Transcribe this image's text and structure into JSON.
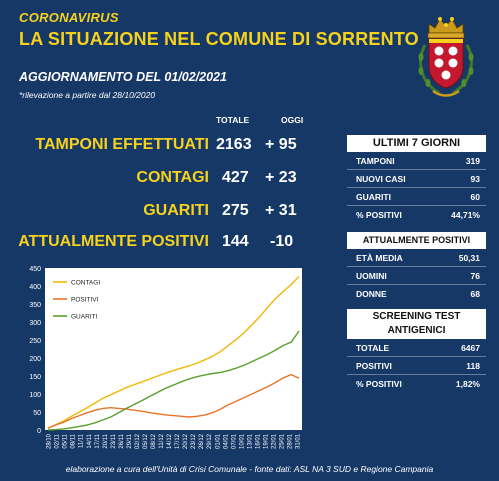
{
  "header": {
    "kicker": "CORONAVIRUS",
    "title": "LA SITUAZIONE NEL COMUNE DI SORRENTO",
    "update": "AGGIORNAMENTO DEL 01/02/2021",
    "note": "*rilevazione a partire dal 28/10/2020"
  },
  "columns": {
    "total": "TOTALE",
    "today": "OGGI"
  },
  "stats": [
    {
      "label": "TAMPONI EFFETTUATI",
      "total": "2163",
      "today": "+ 95"
    },
    {
      "label": "CONTAGI",
      "total": "427",
      "today": "+ 23"
    },
    {
      "label": "GUARITI",
      "total": "275",
      "today": "+ 31"
    },
    {
      "label": "ATTUALMENTE POSITIVI",
      "total": "144",
      "today": "-10"
    }
  ],
  "last7": {
    "title": "ULTIMI 7 GIORNI",
    "rows": [
      {
        "label": "TAMPONI",
        "value": "319"
      },
      {
        "label": "NUOVI CASI",
        "value": "93"
      },
      {
        "label": "GUARITI",
        "value": "60"
      },
      {
        "label": "% POSITIVI",
        "value": "44,71%"
      }
    ]
  },
  "positives": {
    "title": "ATTUALMENTE POSITIVI",
    "rows": [
      {
        "label": "ETÀ MEDIA",
        "value": "50,31"
      },
      {
        "label": "UOMINI",
        "value": "76"
      },
      {
        "label": "DONNE",
        "value": "68"
      }
    ]
  },
  "screening": {
    "title_line1": "SCREENING TEST",
    "title_line2": "ANTIGENICI",
    "rows": [
      {
        "label": "TOTALE",
        "value": "6467"
      },
      {
        "label": "POSITIVI",
        "value": "118"
      },
      {
        "label": "% POSITIVI",
        "value": "1,82%"
      }
    ]
  },
  "footer": "elaborazione a cura dell'Unità di Crisi Comunale - fonte dati: ASL NA 3 SUD e Regione Campania",
  "colors": {
    "background": "#163866",
    "accent": "#f6d21c",
    "contagi": "#f2b705",
    "positivi": "#e8742a",
    "guariti": "#5aa02c"
  },
  "chart_data": {
    "type": "line",
    "ylim": [
      0,
      450
    ],
    "yticks": [
      "0",
      "50",
      "100",
      "150",
      "200",
      "250",
      "300",
      "350",
      "400",
      "450"
    ],
    "x": [
      "28/10",
      "31/10",
      "03/11",
      "06/11",
      "09/11",
      "12/11",
      "15/11",
      "18/11",
      "21/11",
      "24/11",
      "27/11",
      "30/11",
      "03/12",
      "06/12",
      "09/12",
      "12/12",
      "15/12",
      "18/12",
      "21/12",
      "24/12",
      "27/12",
      "30/12",
      "02/01",
      "05/01",
      "08/01",
      "11/01",
      "14/01",
      "17/01",
      "20/01",
      "23/01",
      "26/01",
      "29/01",
      "01/02"
    ],
    "xticks": [
      "28/10",
      "02/11",
      "05/11",
      "08/11",
      "11/11",
      "14/11",
      "17/11",
      "20/11",
      "23/11",
      "26/11",
      "29/11",
      "02/12",
      "05/12",
      "08/12",
      "11/12",
      "14/12",
      "17/12",
      "20/12",
      "23/12",
      "26/12",
      "29/12",
      "01/01",
      "04/01",
      "07/01",
      "10/01",
      "13/01",
      "16/01",
      "19/01",
      "22/01",
      "25/01",
      "28/01",
      "31/01"
    ],
    "legend": [
      "CONTAGI",
      "POSITIVI",
      "GUARITI"
    ],
    "legend_position": "top-left",
    "grid": false,
    "series": [
      {
        "name": "CONTAGI",
        "values": [
          5,
          15,
          25,
          38,
          50,
          62,
          75,
          88,
          98,
          108,
          118,
          126,
          134,
          142,
          150,
          158,
          165,
          172,
          178,
          186,
          195,
          205,
          218,
          235,
          252,
          270,
          292,
          315,
          340,
          365,
          385,
          404,
          427
        ]
      },
      {
        "name": "POSITIVI",
        "values": [
          5,
          14,
          22,
          32,
          40,
          48,
          55,
          60,
          62,
          60,
          58,
          55,
          52,
          48,
          45,
          42,
          40,
          38,
          36,
          38,
          42,
          48,
          58,
          70,
          80,
          90,
          100,
          110,
          120,
          132,
          145,
          154,
          144
        ]
      },
      {
        "name": "GUARITI",
        "values": [
          0,
          1,
          3,
          6,
          10,
          14,
          20,
          28,
          36,
          48,
          60,
          71,
          82,
          94,
          105,
          116,
          125,
          134,
          142,
          148,
          153,
          157,
          160,
          165,
          172,
          180,
          190,
          200,
          210,
          222,
          235,
          244,
          275
        ]
      }
    ]
  }
}
